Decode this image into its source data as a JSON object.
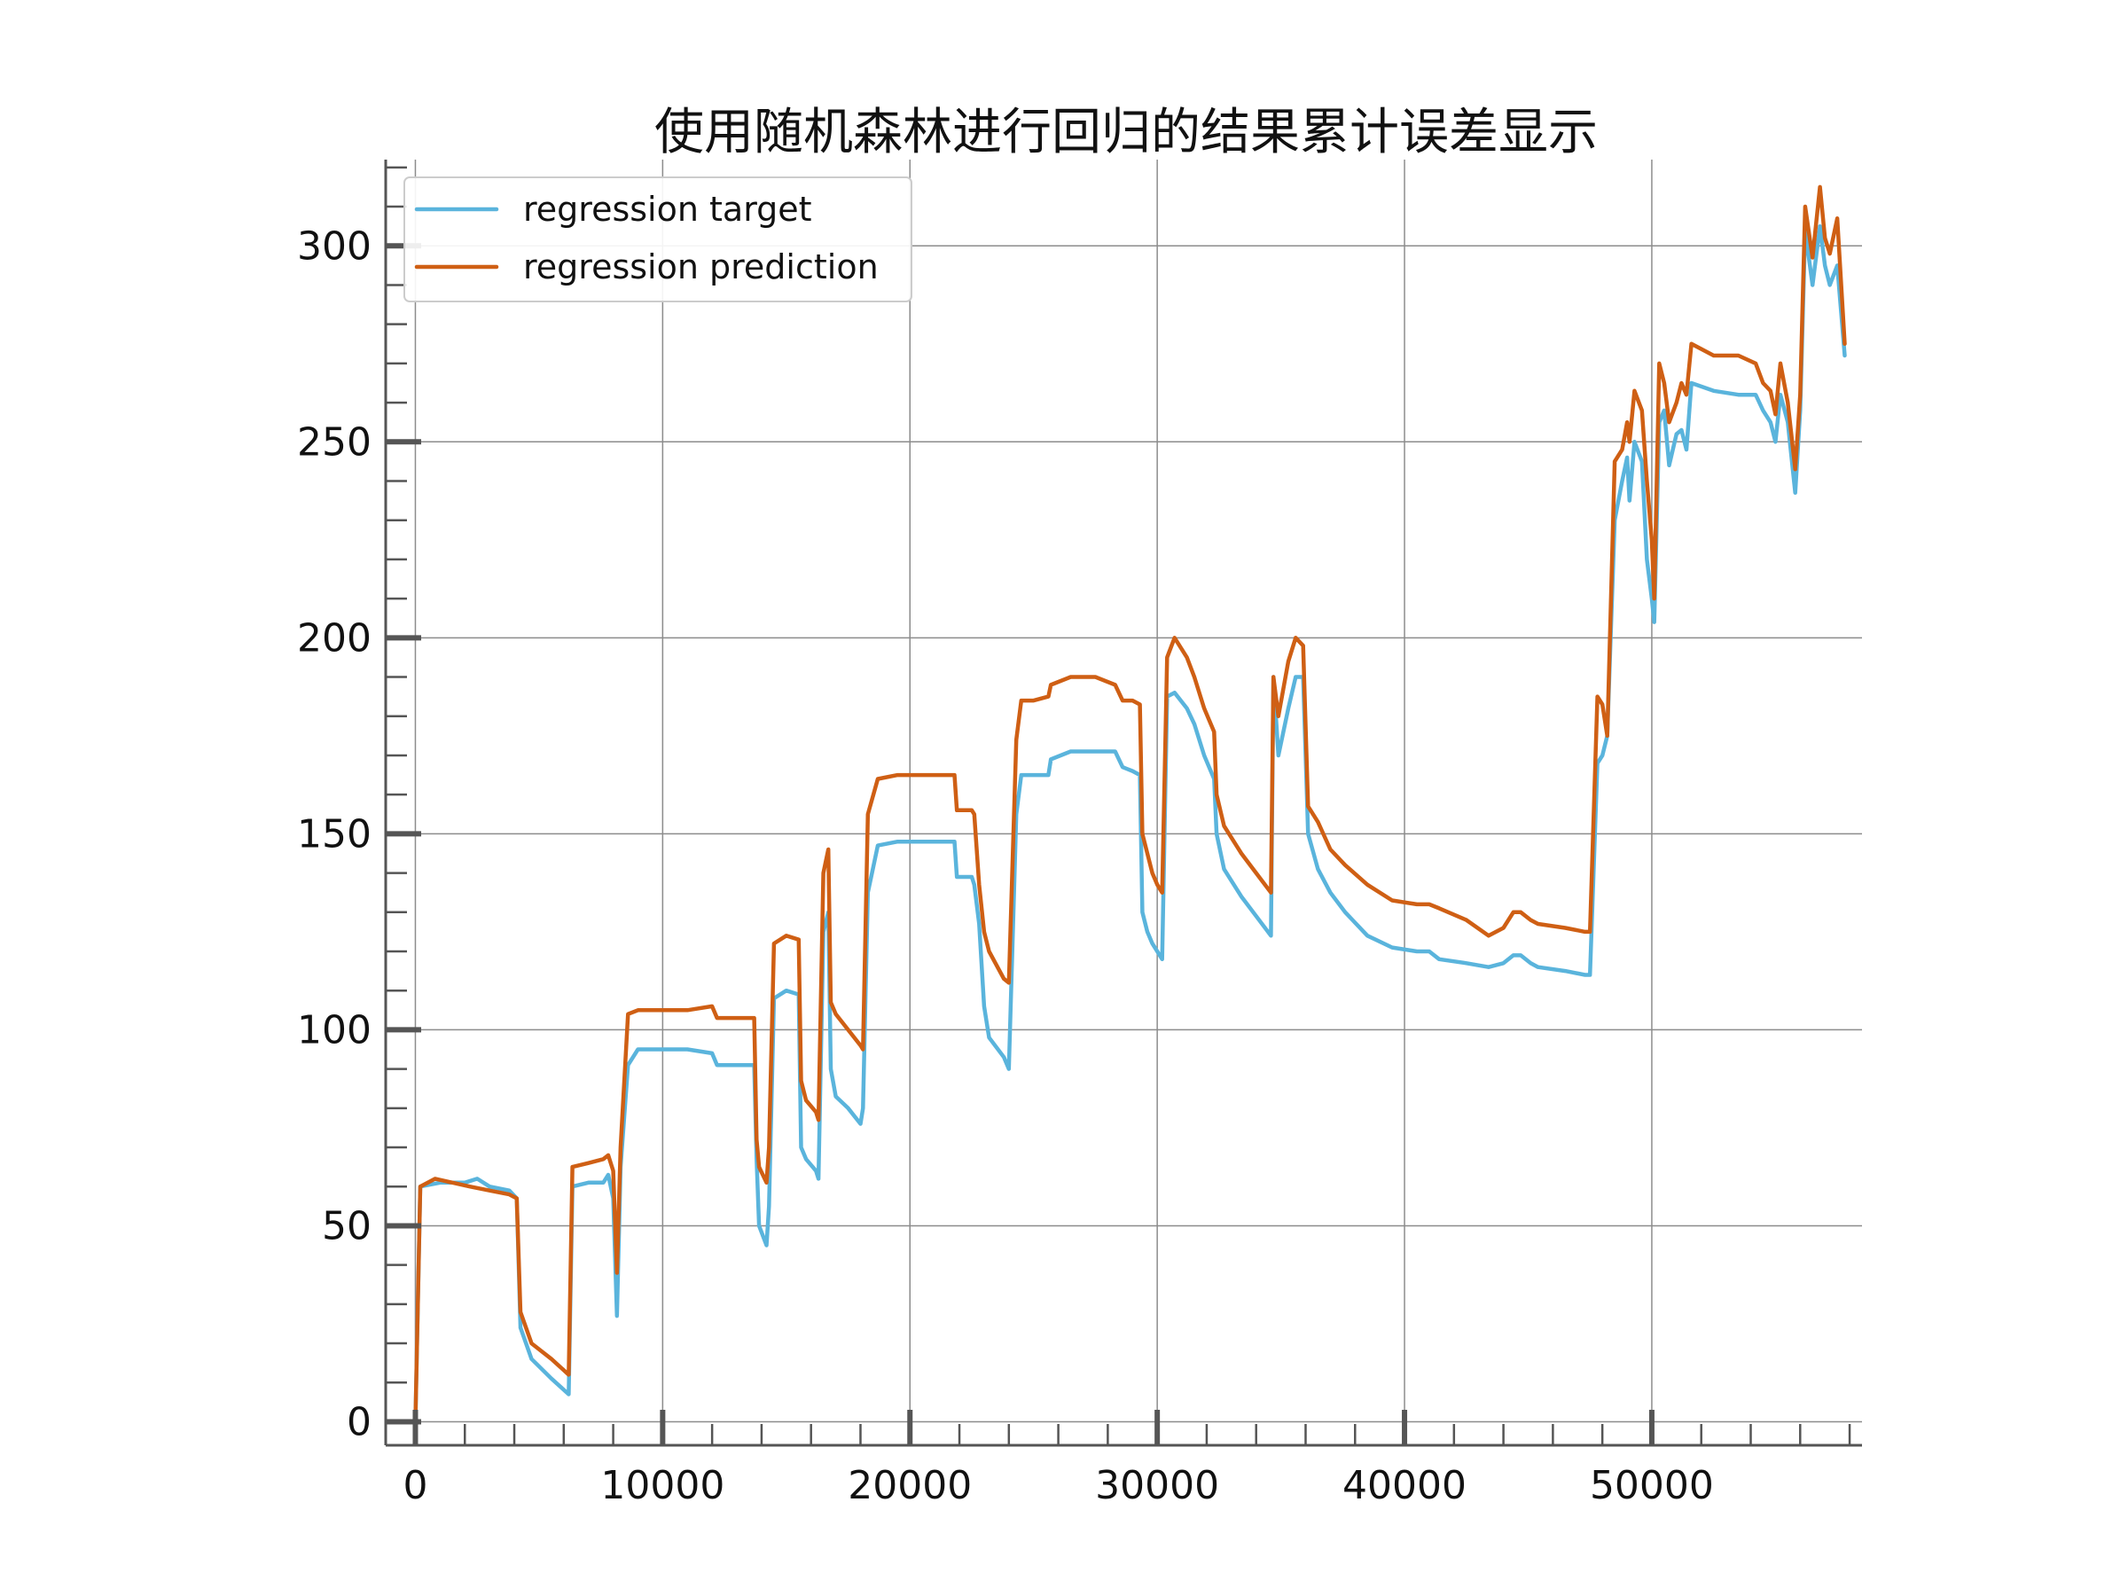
{
  "chart_data": {
    "type": "line",
    "title": "使用随机森林进行回归的结果累计误差显示",
    "xlabel": "",
    "ylabel": "",
    "xlim": [
      -1200,
      58500
    ],
    "ylim": [
      -6,
      322
    ],
    "xticks": [
      0,
      10000,
      20000,
      30000,
      40000,
      50000
    ],
    "yticks": [
      0,
      50,
      100,
      150,
      200,
      250,
      300
    ],
    "x_minor_step": 2000,
    "y_minor_step": 10,
    "grid": true,
    "legend_position": "upper-left",
    "series": [
      {
        "name": "regression target",
        "color": "#5ab4dc",
        "points": [
          [
            0,
            0
          ],
          [
            200,
            60
          ],
          [
            1000,
            61
          ],
          [
            2000,
            61
          ],
          [
            2500,
            62
          ],
          [
            3000,
            60
          ],
          [
            3800,
            59
          ],
          [
            4100,
            57
          ],
          [
            4250,
            24
          ],
          [
            4700,
            16
          ],
          [
            5500,
            11
          ],
          [
            6200,
            7
          ],
          [
            6350,
            60
          ],
          [
            7000,
            61
          ],
          [
            7600,
            61
          ],
          [
            7800,
            63
          ],
          [
            8000,
            57
          ],
          [
            8150,
            27
          ],
          [
            8300,
            65
          ],
          [
            8600,
            91
          ],
          [
            9000,
            95
          ],
          [
            10000,
            95
          ],
          [
            11000,
            95
          ],
          [
            12000,
            94
          ],
          [
            12200,
            91
          ],
          [
            13000,
            91
          ],
          [
            13700,
            91
          ],
          [
            13800,
            67
          ],
          [
            13900,
            50
          ],
          [
            14200,
            45
          ],
          [
            14300,
            55
          ],
          [
            14500,
            108
          ],
          [
            15000,
            110
          ],
          [
            15500,
            109
          ],
          [
            15600,
            70
          ],
          [
            15800,
            67
          ],
          [
            16200,
            64
          ],
          [
            16300,
            62
          ],
          [
            16500,
            125
          ],
          [
            16700,
            130
          ],
          [
            16800,
            90
          ],
          [
            17000,
            83
          ],
          [
            17500,
            80
          ],
          [
            18000,
            76
          ],
          [
            18100,
            80
          ],
          [
            18300,
            135
          ],
          [
            18700,
            147
          ],
          [
            19500,
            148
          ],
          [
            20500,
            148
          ],
          [
            21300,
            148
          ],
          [
            21800,
            148
          ],
          [
            21900,
            139
          ],
          [
            22500,
            139
          ],
          [
            22600,
            137
          ],
          [
            22800,
            127
          ],
          [
            23000,
            106
          ],
          [
            23200,
            98
          ],
          [
            23800,
            93
          ],
          [
            24000,
            90
          ],
          [
            24300,
            155
          ],
          [
            24500,
            165
          ],
          [
            25000,
            165
          ],
          [
            25600,
            165
          ],
          [
            25700,
            169
          ],
          [
            26500,
            171
          ],
          [
            27500,
            171
          ],
          [
            28300,
            171
          ],
          [
            28600,
            167
          ],
          [
            29000,
            166
          ],
          [
            29300,
            165
          ],
          [
            29400,
            130
          ],
          [
            29600,
            125
          ],
          [
            29800,
            122
          ],
          [
            30000,
            120
          ],
          [
            30200,
            118
          ],
          [
            30400,
            185
          ],
          [
            30700,
            186
          ],
          [
            31200,
            182
          ],
          [
            31500,
            178
          ],
          [
            31900,
            170
          ],
          [
            32300,
            164
          ],
          [
            32400,
            150
          ],
          [
            32700,
            141
          ],
          [
            33400,
            134
          ],
          [
            34000,
            129
          ],
          [
            34600,
            124
          ],
          [
            34700,
            190
          ],
          [
            34900,
            170
          ],
          [
            35300,
            182
          ],
          [
            35600,
            190
          ],
          [
            35900,
            190
          ],
          [
            36100,
            150
          ],
          [
            36500,
            141
          ],
          [
            37000,
            135
          ],
          [
            37600,
            130
          ],
          [
            38500,
            124
          ],
          [
            39500,
            121
          ],
          [
            40500,
            120
          ],
          [
            41000,
            120
          ],
          [
            41400,
            118
          ],
          [
            42500,
            117
          ],
          [
            43400,
            116
          ],
          [
            44000,
            117
          ],
          [
            44400,
            119
          ],
          [
            44700,
            119
          ],
          [
            45100,
            117
          ],
          [
            45400,
            116
          ],
          [
            46500,
            115
          ],
          [
            47300,
            114
          ],
          [
            47500,
            114
          ],
          [
            47800,
            168
          ],
          [
            48000,
            170
          ],
          [
            48200,
            175
          ],
          [
            48500,
            230
          ],
          [
            48800,
            240
          ],
          [
            49000,
            246
          ],
          [
            49100,
            235
          ],
          [
            49300,
            250
          ],
          [
            49600,
            245
          ],
          [
            49800,
            220
          ],
          [
            50000,
            210
          ],
          [
            50100,
            204
          ],
          [
            50300,
            255
          ],
          [
            50500,
            258
          ],
          [
            50700,
            244
          ],
          [
            51000,
            252
          ],
          [
            51200,
            253
          ],
          [
            51400,
            248
          ],
          [
            51600,
            265
          ],
          [
            52500,
            263
          ],
          [
            53500,
            262
          ],
          [
            54200,
            262
          ],
          [
            54500,
            258
          ],
          [
            54800,
            255
          ],
          [
            55000,
            250
          ],
          [
            55200,
            262
          ],
          [
            55500,
            255
          ],
          [
            55800,
            237
          ],
          [
            56000,
            258
          ],
          [
            56200,
            304
          ],
          [
            56500,
            290
          ],
          [
            56800,
            305
          ],
          [
            57000,
            295
          ],
          [
            57200,
            290
          ],
          [
            57500,
            295
          ],
          [
            57800,
            272
          ]
        ]
      },
      {
        "name": "regression prediction",
        "color": "#cf5f14",
        "points": [
          [
            0,
            0
          ],
          [
            200,
            60
          ],
          [
            800,
            62
          ],
          [
            1500,
            61
          ],
          [
            2200,
            60
          ],
          [
            3000,
            59
          ],
          [
            3800,
            58
          ],
          [
            4100,
            57
          ],
          [
            4250,
            28
          ],
          [
            4700,
            20
          ],
          [
            5500,
            16
          ],
          [
            6200,
            12
          ],
          [
            6350,
            65
          ],
          [
            7000,
            66
          ],
          [
            7600,
            67
          ],
          [
            7800,
            68
          ],
          [
            8000,
            64
          ],
          [
            8150,
            38
          ],
          [
            8300,
            70
          ],
          [
            8600,
            104
          ],
          [
            9000,
            105
          ],
          [
            10000,
            105
          ],
          [
            11000,
            105
          ],
          [
            12000,
            106
          ],
          [
            12200,
            103
          ],
          [
            13000,
            103
          ],
          [
            13700,
            103
          ],
          [
            13800,
            72
          ],
          [
            13900,
            65
          ],
          [
            14200,
            61
          ],
          [
            14300,
            70
          ],
          [
            14500,
            122
          ],
          [
            15000,
            124
          ],
          [
            15500,
            123
          ],
          [
            15600,
            87
          ],
          [
            15800,
            82
          ],
          [
            16200,
            79
          ],
          [
            16300,
            77
          ],
          [
            16500,
            140
          ],
          [
            16700,
            146
          ],
          [
            16800,
            107
          ],
          [
            17000,
            104
          ],
          [
            17500,
            100
          ],
          [
            18000,
            96
          ],
          [
            18100,
            95
          ],
          [
            18300,
            155
          ],
          [
            18700,
            164
          ],
          [
            19500,
            165
          ],
          [
            20500,
            165
          ],
          [
            21300,
            165
          ],
          [
            21800,
            165
          ],
          [
            21900,
            156
          ],
          [
            22500,
            156
          ],
          [
            22600,
            155
          ],
          [
            22800,
            137
          ],
          [
            23000,
            125
          ],
          [
            23200,
            120
          ],
          [
            23800,
            113
          ],
          [
            24000,
            112
          ],
          [
            24300,
            174
          ],
          [
            24500,
            184
          ],
          [
            25000,
            184
          ],
          [
            25600,
            185
          ],
          [
            25700,
            188
          ],
          [
            26500,
            190
          ],
          [
            27500,
            190
          ],
          [
            28300,
            188
          ],
          [
            28600,
            184
          ],
          [
            29000,
            184
          ],
          [
            29300,
            183
          ],
          [
            29400,
            150
          ],
          [
            29600,
            145
          ],
          [
            29800,
            140
          ],
          [
            30000,
            137
          ],
          [
            30200,
            135
          ],
          [
            30400,
            195
          ],
          [
            30700,
            200
          ],
          [
            31200,
            195
          ],
          [
            31500,
            190
          ],
          [
            31900,
            182
          ],
          [
            32300,
            176
          ],
          [
            32400,
            160
          ],
          [
            32700,
            152
          ],
          [
            33400,
            145
          ],
          [
            34000,
            140
          ],
          [
            34600,
            135
          ],
          [
            34700,
            190
          ],
          [
            34900,
            180
          ],
          [
            35300,
            194
          ],
          [
            35600,
            200
          ],
          [
            35900,
            198
          ],
          [
            36100,
            157
          ],
          [
            36500,
            153
          ],
          [
            37000,
            146
          ],
          [
            37600,
            142
          ],
          [
            38500,
            137
          ],
          [
            39500,
            133
          ],
          [
            40500,
            132
          ],
          [
            41000,
            132
          ],
          [
            41400,
            131
          ],
          [
            42500,
            128
          ],
          [
            43400,
            124
          ],
          [
            44000,
            126
          ],
          [
            44400,
            130
          ],
          [
            44700,
            130
          ],
          [
            45100,
            128
          ],
          [
            45400,
            127
          ],
          [
            46500,
            126
          ],
          [
            47300,
            125
          ],
          [
            47500,
            125
          ],
          [
            47800,
            185
          ],
          [
            48000,
            183
          ],
          [
            48200,
            175
          ],
          [
            48500,
            245
          ],
          [
            48800,
            248
          ],
          [
            49000,
            255
          ],
          [
            49100,
            250
          ],
          [
            49300,
            263
          ],
          [
            49600,
            258
          ],
          [
            49800,
            240
          ],
          [
            50000,
            225
          ],
          [
            50100,
            210
          ],
          [
            50300,
            270
          ],
          [
            50500,
            265
          ],
          [
            50700,
            255
          ],
          [
            51000,
            260
          ],
          [
            51200,
            265
          ],
          [
            51400,
            262
          ],
          [
            51600,
            275
          ],
          [
            52500,
            272
          ],
          [
            53500,
            272
          ],
          [
            54200,
            270
          ],
          [
            54500,
            265
          ],
          [
            54800,
            263
          ],
          [
            55000,
            257
          ],
          [
            55200,
            270
          ],
          [
            55500,
            260
          ],
          [
            55800,
            243
          ],
          [
            56000,
            262
          ],
          [
            56200,
            310
          ],
          [
            56500,
            297
          ],
          [
            56800,
            315
          ],
          [
            57000,
            302
          ],
          [
            57200,
            298
          ],
          [
            57500,
            307
          ],
          [
            57800,
            275
          ]
        ]
      }
    ]
  }
}
